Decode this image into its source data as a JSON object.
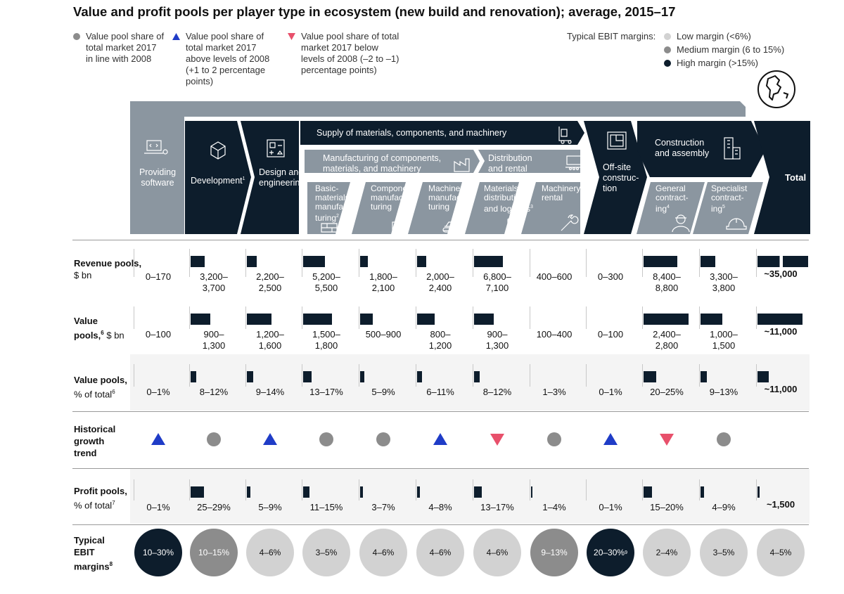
{
  "title": "Value and profit pools per player type in ecosystem (new build and renovation); average, 2015–17",
  "legend": {
    "circle": "Value pool share of total market 2017 in line with 2008",
    "up": "Value pool share of total market 2017 above levels of 2008 (+1 to 2 percentage points)",
    "down": "Value pool share of total market 2017 below levels of 2008 (–2 to –1) percentage points)",
    "ebit_label": "Typical EBIT margins:",
    "ebit_low": "Low margin (<6%)",
    "ebit_med": "Medium margin (6 to 15%)",
    "ebit_high": "High margin (>15%)"
  },
  "colors": {
    "navy": "#0d1d2c",
    "gray": "#8b96a0",
    "light_gray": "#d2d2d2",
    "medium_gray": "#8c8c8c",
    "triangle_up": "#1f3cc7",
    "triangle_down": "#e8506b",
    "circle_trend": "#8c8c8c"
  },
  "icons": [
    "globe-icon",
    "software-icon",
    "cube-icon",
    "design-grid-icon",
    "forklift-icon",
    "factory-icon",
    "pallet-icon",
    "conveyor-icon",
    "blueprint-icon",
    "buildings-icon",
    "bricks-icon",
    "puzzle-icon",
    "bulldozer-icon",
    "box-check-icon",
    "wrench-icon",
    "worker-icon",
    "hardhat-icon"
  ],
  "flow": {
    "providing_software": "Providing software",
    "development": "Development",
    "development_sup": "1",
    "design": "Design and engineering",
    "supply": "Supply of materials, components, and machinery",
    "manufacturing": "Manufacturing of components, materials, and machinery",
    "distribution": "Distribution and rental",
    "offsite": "Off-site construc- tion",
    "construction": "Construction and assembly",
    "total": "Total",
    "basic": "Basic- materials manufac- turing",
    "basic_sup": "2",
    "component": "Component manufac- turing",
    "machinery_mfg": "Machinery manufac- turing",
    "materials_dist": "Materials distribution and logistics",
    "materials_dist_sup": "3",
    "machinery_rental": "Machinery rental",
    "general": "General contract- ing",
    "general_sup": "4",
    "specialist": "Specialist contract- ing",
    "specialist_sup": "5"
  },
  "rows": {
    "revenue": {
      "label": "Revenue pools,",
      "unit": "$ bn",
      "sup": ""
    },
    "value_bn": {
      "label": "Value pools,",
      "unit": "$ bn",
      "sup": "6"
    },
    "value_pct": {
      "label": "Value pools,",
      "unit": "% of total",
      "sup": "6"
    },
    "trend": {
      "label": "Historical growth trend"
    },
    "profit": {
      "label": "Profit pools,",
      "unit": "% of total",
      "sup": "7"
    },
    "ebit": {
      "label": "Typical EBIT margins",
      "sup": "8"
    }
  },
  "columns": [
    {
      "revenue": "0–170",
      "rev_bar": 0,
      "value_bn": "0–100",
      "vbn_bar": 0,
      "value_pct": "0–1%",
      "vpct_bar": 0,
      "trend": "up",
      "profit": "0–1%",
      "prof_bar": 0,
      "ebit": "10–30%",
      "ebit_level": "high",
      "ebit_sup": ""
    },
    {
      "revenue": "3,200– 3,700",
      "rev_bar": 3450,
      "value_bn": "900– 1,300",
      "vbn_bar": 1100,
      "value_pct": "8–12%",
      "vpct_bar": 10,
      "trend": "circle",
      "profit": "25–29%",
      "prof_bar": 27,
      "ebit": "10–15%",
      "ebit_level": "medium",
      "ebit_sup": ""
    },
    {
      "revenue": "2,200– 2,500",
      "rev_bar": 2350,
      "value_bn": "1,200– 1,600",
      "vbn_bar": 1400,
      "value_pct": "9–14%",
      "vpct_bar": 11.5,
      "trend": "up",
      "profit": "5–9%",
      "prof_bar": 7,
      "ebit": "4–6%",
      "ebit_level": "low",
      "ebit_sup": ""
    },
    {
      "revenue": "5,200– 5,500",
      "rev_bar": 5350,
      "value_bn": "1,500– 1,800",
      "vbn_bar": 1650,
      "value_pct": "13–17%",
      "vpct_bar": 15,
      "trend": "circle",
      "profit": "11–15%",
      "prof_bar": 13,
      "ebit": "3–5%",
      "ebit_level": "low",
      "ebit_sup": ""
    },
    {
      "revenue": "1,800– 2,100",
      "rev_bar": 1950,
      "value_bn": "500–900",
      "vbn_bar": 700,
      "value_pct": "5–9%",
      "vpct_bar": 7,
      "trend": "circle",
      "profit": "3–7%",
      "prof_bar": 5,
      "ebit": "4–6%",
      "ebit_level": "low",
      "ebit_sup": ""
    },
    {
      "revenue": "2,000– 2,400",
      "rev_bar": 2200,
      "value_bn": "800– 1,200",
      "vbn_bar": 1000,
      "value_pct": "6–11%",
      "vpct_bar": 8.5,
      "trend": "up",
      "profit": "4–8%",
      "prof_bar": 6,
      "ebit": "4–6%",
      "ebit_level": "low",
      "ebit_sup": ""
    },
    {
      "revenue": "6,800– 7,100",
      "rev_bar": 6950,
      "value_bn": "900– 1,300",
      "vbn_bar": 1100,
      "value_pct": "8–12%",
      "vpct_bar": 10,
      "trend": "down",
      "profit": "13–17%",
      "prof_bar": 15,
      "ebit": "4–6%",
      "ebit_level": "low",
      "ebit_sup": ""
    },
    {
      "revenue": "400–600",
      "rev_bar": 0,
      "value_bn": "100–400",
      "vbn_bar": 0,
      "value_pct": "1–3%",
      "vpct_bar": 0,
      "trend": "circle",
      "profit": "1–4%",
      "prof_bar": 2.5,
      "ebit": "9–13%",
      "ebit_level": "medium",
      "ebit_sup": ""
    },
    {
      "revenue": "0–300",
      "rev_bar": 0,
      "value_bn": "0–100",
      "vbn_bar": 0,
      "value_pct": "0–1%",
      "vpct_bar": 0,
      "trend": "up",
      "profit": "0–1%",
      "prof_bar": 0,
      "ebit": "20–30%",
      "ebit_level": "high",
      "ebit_sup": "9"
    },
    {
      "revenue": "8,400– 8,800",
      "rev_bar": 8600,
      "value_bn": "2,400– 2,800",
      "vbn_bar": 2600,
      "value_pct": "20–25%",
      "vpct_bar": 22.5,
      "trend": "down",
      "profit": "15–20%",
      "prof_bar": 17.5,
      "ebit": "2–4%",
      "ebit_level": "low",
      "ebit_sup": ""
    },
    {
      "revenue": "3,300– 3,800",
      "rev_bar": 3550,
      "value_bn": "1,000– 1,500",
      "vbn_bar": 1250,
      "value_pct": "9–13%",
      "vpct_bar": 11,
      "trend": "circle",
      "profit": "4–9%",
      "prof_bar": 6.5,
      "ebit": "3–5%",
      "ebit_level": "low",
      "ebit_sup": ""
    },
    {
      "revenue": "~35,000",
      "rev_bar": 35000,
      "value_bn": "~11,000",
      "vbn_bar": 11000,
      "value_pct": "~11,000",
      "vpct_bar": 22.5,
      "trend": "",
      "profit": "~1,500",
      "prof_bar": 3,
      "ebit": "4–5%",
      "ebit_level": "low",
      "ebit_sup": ""
    }
  ]
}
